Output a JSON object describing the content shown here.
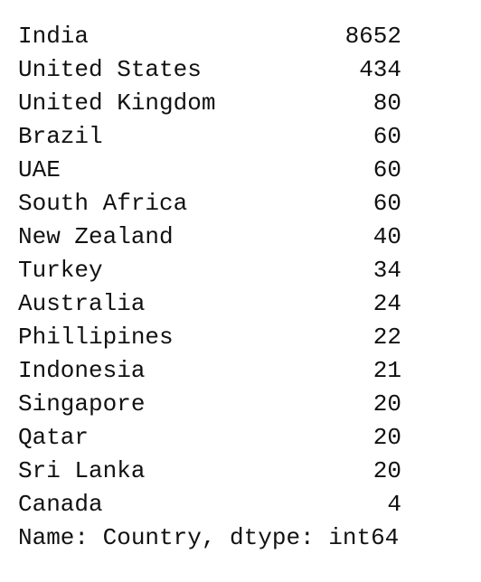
{
  "series": {
    "rows": [
      {
        "country": "India",
        "count": "8652"
      },
      {
        "country": "United States",
        "count": "434"
      },
      {
        "country": "United Kingdom",
        "count": "80"
      },
      {
        "country": "Brazil",
        "count": "60"
      },
      {
        "country": "UAE",
        "count": "60"
      },
      {
        "country": "South Africa",
        "count": "60"
      },
      {
        "country": "New Zealand",
        "count": "40"
      },
      {
        "country": "Turkey",
        "count": "34"
      },
      {
        "country": "Australia",
        "count": "24"
      },
      {
        "country": "Phillipines",
        "count": "22"
      },
      {
        "country": "Indonesia",
        "count": "21"
      },
      {
        "country": "Singapore",
        "count": "20"
      },
      {
        "country": "Qatar",
        "count": "20"
      },
      {
        "country": "Sri Lanka",
        "count": "20"
      },
      {
        "country": "Canada",
        "count": "4"
      }
    ],
    "footer": "Name: Country, dtype: int64"
  }
}
